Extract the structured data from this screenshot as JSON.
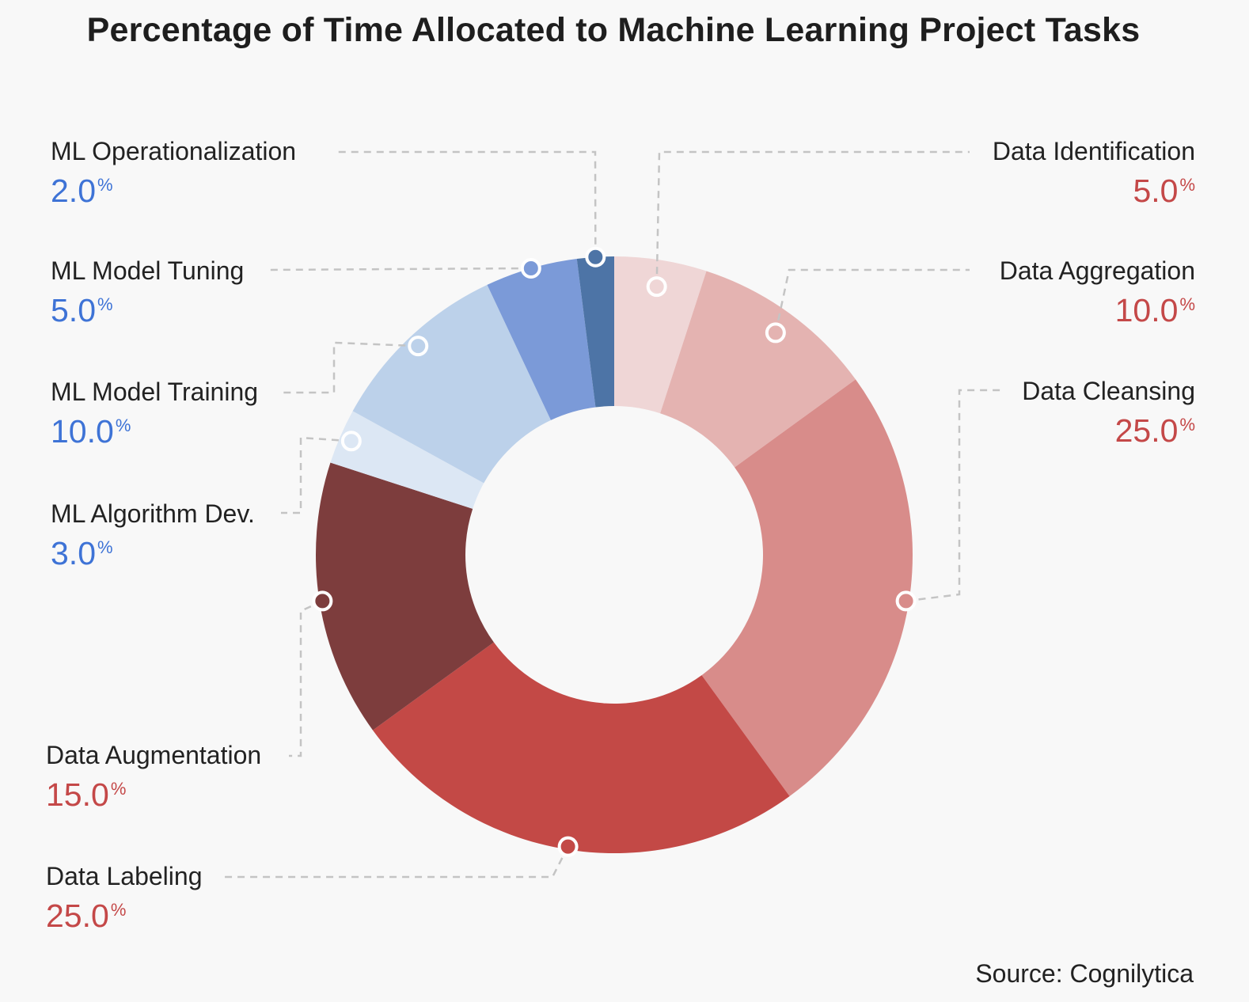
{
  "chart_data": {
    "type": "pie",
    "title": "Percentage of Time Allocated to Machine Learning Project Tasks",
    "source": "Source: Cognilytica",
    "unit": "%",
    "slices": [
      {
        "label": "Data Identification",
        "value": 5.0,
        "display": "5.0",
        "color": "#efd6d6",
        "text_color": "#c44848"
      },
      {
        "label": "Data Aggregation",
        "value": 10.0,
        "display": "10.0",
        "color": "#e4b3b1",
        "text_color": "#c44848"
      },
      {
        "label": "Data Cleansing",
        "value": 25.0,
        "display": "25.0",
        "color": "#d88c8a",
        "text_color": "#c44848"
      },
      {
        "label": "Data Labeling",
        "value": 25.0,
        "display": "25.0",
        "color": "#c34946",
        "text_color": "#c44848"
      },
      {
        "label": "Data Augmentation",
        "value": 15.0,
        "display": "15.0",
        "color": "#7d3d3d",
        "text_color": "#c44848"
      },
      {
        "label": "ML Algorithm Dev.",
        "value": 3.0,
        "display": "3.0",
        "color": "#dce7f4",
        "text_color": "#3e73d6"
      },
      {
        "label": "ML Model Training",
        "value": 10.0,
        "display": "10.0",
        "color": "#bcd1ea",
        "text_color": "#3e73d6"
      },
      {
        "label": "ML Model Tuning",
        "value": 5.0,
        "display": "5.0",
        "color": "#7b9ad8",
        "text_color": "#3e73d6"
      },
      {
        "label": "ML Operationalization",
        "value": 2.0,
        "display": "2.0",
        "color": "#4d74a6",
        "text_color": "#3e73d6"
      }
    ]
  }
}
